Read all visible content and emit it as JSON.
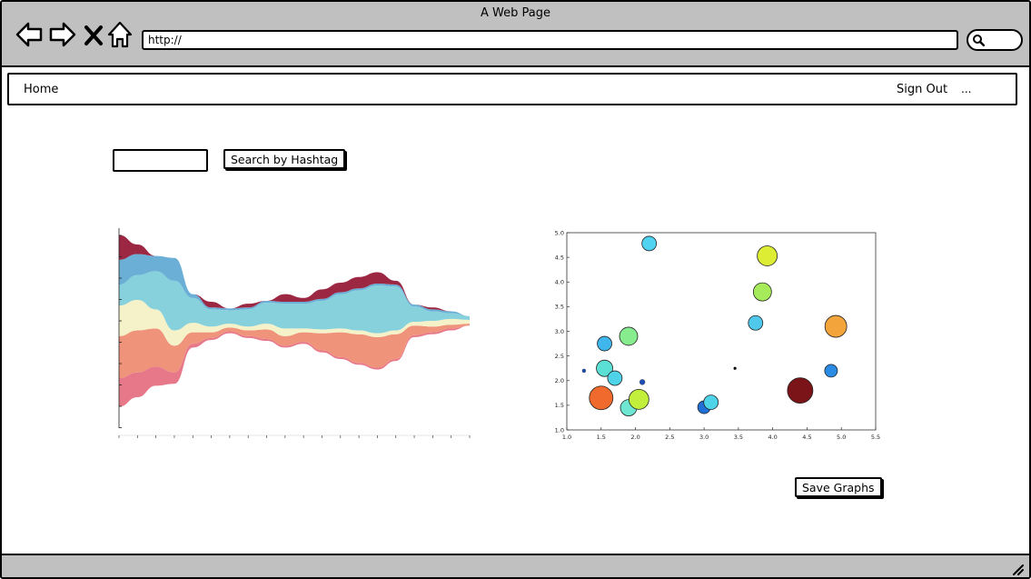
{
  "window": {
    "title": "A Web Page"
  },
  "browser": {
    "url": "http://"
  },
  "menu": {
    "home": "Home",
    "sign_out": "Sign Out",
    "more": "..."
  },
  "search": {
    "value": "",
    "button_label": "Search by Hashtag"
  },
  "actions": {
    "save_label": "Save Graphs"
  },
  "icons": {
    "back": "arrow-left-icon",
    "forward": "arrow-right-icon",
    "stop": "close-icon",
    "home": "home-icon",
    "search": "search-icon",
    "resize": "resize-grip-icon"
  },
  "chart_data": [
    {
      "type": "area",
      "title": "",
      "xlabel": "",
      "ylabel": "",
      "y_tick_labels_legible": false,
      "x": [
        0,
        1,
        2,
        3,
        4,
        5,
        6,
        7,
        8,
        9,
        10,
        11,
        12,
        13,
        14,
        15,
        16,
        17,
        18,
        19
      ],
      "series": [
        {
          "color": "#e7788a",
          "values": [
            1.5,
            1.3,
            1.0,
            0.6,
            0.2,
            0.1,
            0.1,
            0.1,
            0.1,
            0.1,
            0.1,
            0.1,
            0.1,
            0.1,
            0.1,
            0.1,
            0.1,
            0.1,
            0.1,
            0.0
          ]
        },
        {
          "color": "#f0937b",
          "values": [
            2.2,
            2.2,
            2.0,
            1.4,
            0.6,
            0.3,
            0.2,
            0.3,
            0.5,
            0.5,
            0.5,
            0.9,
            1.3,
            1.5,
            1.6,
            1.3,
            0.5,
            0.3,
            0.2,
            0.1
          ]
        },
        {
          "color": "#f5f2c9",
          "values": [
            1.6,
            1.6,
            1.0,
            0.8,
            0.5,
            0.3,
            0.2,
            0.2,
            0.3,
            0.4,
            0.2,
            0.2,
            0.2,
            0.2,
            0.2,
            0.2,
            0.2,
            0.3,
            0.3,
            0.2
          ]
        },
        {
          "color": "#86d1dc",
          "values": [
            1.1,
            1.3,
            2.0,
            2.6,
            1.3,
            0.9,
            0.7,
            0.9,
            1.1,
            1.3,
            1.3,
            1.5,
            1.8,
            2.1,
            2.5,
            2.3,
            0.8,
            0.5,
            0.3,
            0.2
          ]
        },
        {
          "color": "#6baed6",
          "values": [
            1.3,
            1.1,
            0.8,
            1.2,
            0.2,
            0.1,
            0.1,
            0.1,
            0.1,
            0.1,
            0.1,
            0.1,
            0.1,
            0.1,
            0.1,
            0.1,
            0.1,
            0.1,
            0.1,
            0.0
          ]
        },
        {
          "color": "#9b2743",
          "values": [
            1.3,
            0.5,
            0.0,
            0.0,
            0.0,
            0.3,
            0.0,
            0.2,
            0.0,
            0.4,
            0.2,
            0.5,
            0.5,
            0.6,
            0.6,
            0.2,
            0.0,
            0.1,
            0.0,
            0.0
          ]
        }
      ]
    },
    {
      "type": "scatter",
      "title": "",
      "xlabel": "",
      "ylabel": "",
      "xlim": [
        1.0,
        5.5
      ],
      "ylim": [
        1.0,
        5.0
      ],
      "x_ticks": [
        "1.0",
        "1.5",
        "2.0",
        "2.5",
        "3.0",
        "3.5",
        "4.0",
        "4.5",
        "5.0",
        "5.5"
      ],
      "y_ticks": [
        "1.0",
        "1.5",
        "2.0",
        "2.5",
        "3.0",
        "3.5",
        "4.0",
        "4.5",
        "5.0"
      ],
      "grid": false,
      "points": [
        {
          "x": 1.25,
          "y": 2.2,
          "r": 2,
          "color": "#1f4fb4"
        },
        {
          "x": 1.5,
          "y": 1.65,
          "r": 13,
          "color": "#ef6a2c"
        },
        {
          "x": 1.55,
          "y": 2.25,
          "r": 9,
          "color": "#5be0d6"
        },
        {
          "x": 1.55,
          "y": 2.75,
          "r": 8,
          "color": "#3fb6ec"
        },
        {
          "x": 1.7,
          "y": 2.05,
          "r": 8,
          "color": "#4fd3e8"
        },
        {
          "x": 1.9,
          "y": 1.45,
          "r": 9,
          "color": "#6fe6d2"
        },
        {
          "x": 1.9,
          "y": 2.9,
          "r": 10,
          "color": "#86ec8e"
        },
        {
          "x": 2.05,
          "y": 1.62,
          "r": 11,
          "color": "#c2ef3c"
        },
        {
          "x": 2.1,
          "y": 1.97,
          "r": 3,
          "color": "#1f4fb4"
        },
        {
          "x": 2.2,
          "y": 4.78,
          "r": 8,
          "color": "#4fd3f1"
        },
        {
          "x": 3.0,
          "y": 1.46,
          "r": 7,
          "color": "#1f6fd6"
        },
        {
          "x": 3.1,
          "y": 1.56,
          "r": 8,
          "color": "#4fd3e8"
        },
        {
          "x": 3.45,
          "y": 2.25,
          "r": 1.5,
          "color": "#000000"
        },
        {
          "x": 3.75,
          "y": 3.17,
          "r": 8,
          "color": "#4fc8ec"
        },
        {
          "x": 3.85,
          "y": 3.8,
          "r": 10,
          "color": "#a6eb5a"
        },
        {
          "x": 3.92,
          "y": 4.53,
          "r": 11,
          "color": "#dced34"
        },
        {
          "x": 4.4,
          "y": 1.8,
          "r": 14,
          "color": "#7a1418"
        },
        {
          "x": 4.85,
          "y": 2.2,
          "r": 7,
          "color": "#2a8be4"
        },
        {
          "x": 4.92,
          "y": 3.1,
          "r": 12,
          "color": "#f3a43a"
        }
      ]
    }
  ]
}
